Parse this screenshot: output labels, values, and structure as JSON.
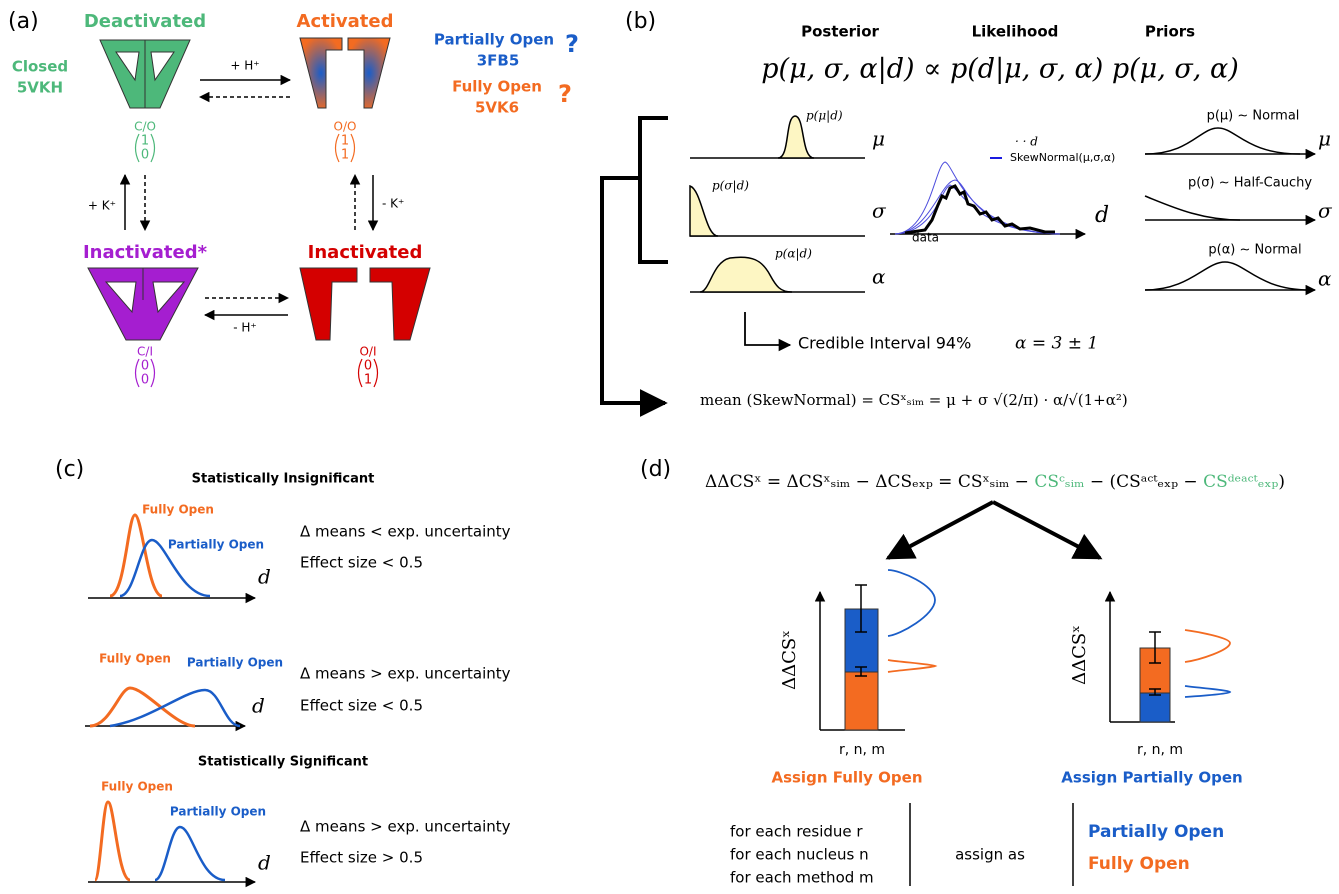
{
  "panel_a": {
    "label": "(a)",
    "states": [
      {
        "name": "Deactivated",
        "code": "C/O",
        "vector": [
          1,
          0
        ]
      },
      {
        "name": "Activated",
        "code": "O/O",
        "vector": [
          1,
          1
        ]
      },
      {
        "name": "Inactivated*",
        "code": "C/I",
        "vector": [
          0,
          0
        ]
      },
      {
        "name": "Inactivated",
        "code": "O/I",
        "vector": [
          0,
          1
        ]
      }
    ],
    "closed_label": "Closed",
    "closed_pdb": "5VKH",
    "partially_open_label": "Partially Open",
    "partially_open_pdb": "3FB5",
    "partially_open_mark": "?",
    "fully_open_label": "Fully Open",
    "fully_open_pdb": "5VK6",
    "fully_open_mark": "?",
    "transitions": [
      "+ H⁺",
      "+ K⁺",
      "- K⁺",
      "- H⁺"
    ]
  },
  "panel_b": {
    "label": "(b)",
    "headers": [
      "Posterior",
      "Likelihood",
      "Priors"
    ],
    "equation": "p(μ, σ, α|d) ∝ p(d|μ, σ, α) p(μ, σ, α)",
    "posterior_labels": [
      "p(μ|d)",
      "p(σ|d)",
      "p(α|d)"
    ],
    "parameters": [
      "μ",
      "σ",
      "α"
    ],
    "likelihood_legend": [
      "· · d",
      "SkewNormal(μ,σ,α)"
    ],
    "likelihood_axis": "d",
    "data_label": "data",
    "priors": [
      "p(μ) ∼ Normal",
      "p(σ) ∼ Half-Cauchy",
      "p(α) ∼ Normal"
    ],
    "credible_interval": "Credible Interval 94%",
    "credible_value": "α = 3 ± 1",
    "mean_equation": "mean (SkewNormal) = CSˣₛᵢₘ = μ + σ √(2/π) · α/√(1+α²)"
  },
  "panel_c": {
    "label": "(c)",
    "groups": [
      {
        "title": "Statistically Insignificant",
        "fully_open": "Fully Open",
        "partially_open": "Partially Open",
        "axis": "d",
        "lines": [
          "Δ means < exp. uncertainty",
          "Effect size < 0.5"
        ]
      },
      {
        "fully_open": "Fully Open",
        "partially_open": "Partially Open",
        "axis": "d",
        "lines": [
          "Δ means > exp. uncertainty",
          "Effect size < 0.5"
        ]
      },
      {
        "title": "Statistically Significant",
        "fully_open": "Fully Open",
        "partially_open": "Partially Open",
        "axis": "d",
        "lines": [
          "Δ means > exp. uncertainty",
          "Effect size > 0.5"
        ]
      }
    ]
  },
  "panel_d": {
    "label": "(d)",
    "equation": [
      "ΔΔCSˣ = ΔCSˣₛᵢₘ − ΔCSₑₓₚ = CSˣₛᵢₘ − ",
      "CSᶜₛᵢₘ",
      " − (CSᵃᶜᵗₑₓₚ − ",
      "CSᵈᵉᵃᶜᵗₑₓₚ",
      ")"
    ],
    "y_label": "ΔΔCSˣ",
    "x_labels": [
      "r, n, m",
      "r, n, m"
    ],
    "assignments": [
      "Assign Fully Open",
      "Assign Partially Open"
    ],
    "loops": [
      "for each residue r",
      "for each nucleus n",
      "for each method m"
    ],
    "assign_as": "assign as",
    "outcomes": [
      "Partially Open",
      "Fully Open"
    ]
  }
}
